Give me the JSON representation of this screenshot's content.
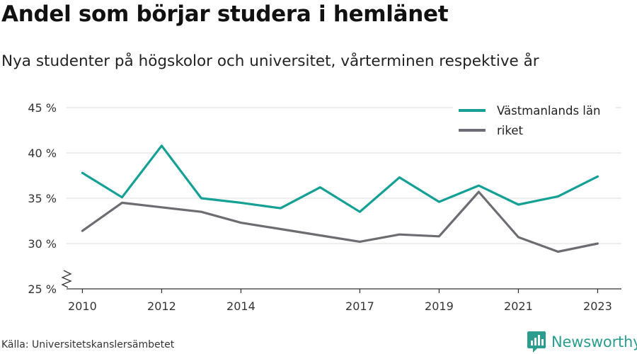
{
  "title": "Andel som börjar studera i hemlänet",
  "subtitle": "Nya studenter på högskolor och universitet, vårterminen respektive år",
  "source": "Källa: Universitetskanslersämbetet",
  "brand": "Newsworthy",
  "chart_data": {
    "type": "line",
    "x": [
      2010,
      2011,
      2012,
      2013,
      2014,
      2015,
      2016,
      2017,
      2018,
      2019,
      2020,
      2021,
      2022,
      2023
    ],
    "x_tick_labels": [
      "2010",
      "2012",
      "2014",
      "2017",
      "2019",
      "2021",
      "2023"
    ],
    "x_tick_values": [
      2010,
      2012,
      2014,
      2017,
      2019,
      2021,
      2023
    ],
    "y_tick_labels": [
      "25 %",
      "30 %",
      "35 %",
      "40 %",
      "45 %"
    ],
    "y_tick_values": [
      25,
      30,
      35,
      40,
      45
    ],
    "ylim": [
      25,
      45
    ],
    "y_axis_break": true,
    "grid": true,
    "legend_position": "top-right",
    "series": [
      {
        "name": "Västmanlands län",
        "color": "#14a095",
        "values": [
          37.8,
          35.1,
          40.8,
          35.0,
          34.5,
          33.9,
          36.2,
          33.5,
          37.3,
          34.6,
          36.4,
          34.3,
          35.2,
          37.4
        ]
      },
      {
        "name": "riket",
        "color": "#6d6c72",
        "values": [
          31.4,
          34.5,
          34.0,
          33.5,
          32.3,
          31.6,
          30.9,
          30.2,
          31.0,
          30.8,
          35.7,
          30.7,
          29.1,
          30.0
        ]
      }
    ]
  }
}
